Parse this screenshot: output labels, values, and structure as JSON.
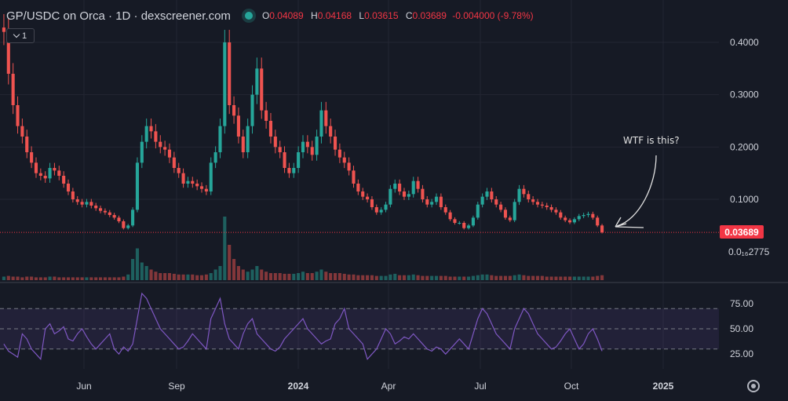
{
  "header": {
    "title": "GP/USDC on Orca · 1D · dexscreener.com",
    "ohlc": {
      "o_label": "O",
      "o": "0.04089",
      "h_label": "H",
      "h": "0.04168",
      "l_label": "L",
      "l": "0.03615",
      "c_label": "C",
      "c": "0.03689",
      "change": "-0.004000 (-9.78%)"
    }
  },
  "indicator_toggle": {
    "label": "1"
  },
  "annotation": {
    "text": "WTF is this?"
  },
  "colors": {
    "up": "#26a69a",
    "down": "#ef5350",
    "rsi": "#7e57c2",
    "price_tag": "#f23645",
    "background": "#161a25",
    "grid": "#232632"
  },
  "chart_data": [
    {
      "type": "candlestick",
      "title": "",
      "x_ticks": [
        "Jun",
        "Sep",
        "2024",
        "Apr",
        "Jul",
        "Oct",
        "2025"
      ],
      "y_ticks": [
        "0.4000",
        "0.3000",
        "0.2000",
        "0.1000"
      ],
      "ylim": [
        -0.085,
        0.47
      ],
      "current_price": "0.03689",
      "min_price_label": "0.0₁₆2775",
      "series": [
        {
          "values": [
            0.42,
            0.34,
            0.28,
            0.24,
            0.22,
            0.19,
            0.17,
            0.15,
            0.145,
            0.14,
            0.16,
            0.155,
            0.145,
            0.13,
            0.115,
            0.1,
            0.095,
            0.09,
            0.095,
            0.088,
            0.083,
            0.078,
            0.075,
            0.07,
            0.065,
            0.058,
            0.045,
            0.05,
            0.08,
            0.17,
            0.21,
            0.24,
            0.23,
            0.21,
            0.2,
            0.195,
            0.18,
            0.16,
            0.15,
            0.13,
            0.135,
            0.13,
            0.125,
            0.12,
            0.115,
            0.17,
            0.19,
            0.24,
            0.4,
            0.28,
            0.26,
            0.22,
            0.19,
            0.24,
            0.3,
            0.35,
            0.27,
            0.25,
            0.22,
            0.2,
            0.19,
            0.16,
            0.15,
            0.16,
            0.19,
            0.21,
            0.2,
            0.185,
            0.22,
            0.27,
            0.24,
            0.22,
            0.195,
            0.18,
            0.17,
            0.155,
            0.13,
            0.115,
            0.105,
            0.1,
            0.085,
            0.075,
            0.08,
            0.09,
            0.12,
            0.13,
            0.115,
            0.105,
            0.11,
            0.135,
            0.12,
            0.1,
            0.09,
            0.095,
            0.105,
            0.085,
            0.075,
            0.062,
            0.055,
            0.055,
            0.045,
            0.05,
            0.065,
            0.09,
            0.105,
            0.115,
            0.1,
            0.09,
            0.08,
            0.065,
            0.06,
            0.095,
            0.12,
            0.11,
            0.1,
            0.095,
            0.09,
            0.088,
            0.085,
            0.08,
            0.075,
            0.065,
            0.06,
            0.056,
            0.062,
            0.068,
            0.07,
            0.072,
            0.065,
            0.05,
            0.037
          ]
        }
      ],
      "volume_label": "",
      "volume": [
        0.05,
        0.06,
        0.05,
        0.05,
        0.04,
        0.05,
        0.05,
        0.04,
        0.04,
        0.04,
        0.05,
        0.05,
        0.04,
        0.04,
        0.04,
        0.04,
        0.04,
        0.04,
        0.04,
        0.04,
        0.04,
        0.04,
        0.04,
        0.04,
        0.04,
        0.04,
        0.05,
        0.08,
        0.3,
        0.45,
        0.25,
        0.2,
        0.15,
        0.12,
        0.1,
        0.1,
        0.1,
        0.09,
        0.08,
        0.08,
        0.08,
        0.08,
        0.07,
        0.07,
        0.08,
        0.1,
        0.15,
        0.2,
        0.9,
        0.5,
        0.3,
        0.2,
        0.15,
        0.12,
        0.15,
        0.2,
        0.15,
        0.12,
        0.1,
        0.1,
        0.1,
        0.09,
        0.09,
        0.09,
        0.1,
        0.12,
        0.1,
        0.1,
        0.12,
        0.15,
        0.12,
        0.1,
        0.1,
        0.1,
        0.09,
        0.08,
        0.08,
        0.07,
        0.07,
        0.07,
        0.07,
        0.06,
        0.06,
        0.06,
        0.08,
        0.09,
        0.07,
        0.07,
        0.07,
        0.08,
        0.07,
        0.06,
        0.06,
        0.06,
        0.06,
        0.06,
        0.06,
        0.05,
        0.05,
        0.05,
        0.05,
        0.05,
        0.06,
        0.07,
        0.08,
        0.08,
        0.07,
        0.06,
        0.06,
        0.06,
        0.06,
        0.07,
        0.08,
        0.07,
        0.06,
        0.06,
        0.06,
        0.06,
        0.05,
        0.05,
        0.05,
        0.05,
        0.05,
        0.05,
        0.05,
        0.05,
        0.05,
        0.05,
        0.05,
        0.06,
        0.07
      ]
    },
    {
      "type": "line",
      "title": "",
      "y_ticks": [
        "75.00",
        "50.00",
        "25.00"
      ],
      "bands": [
        30,
        50,
        70
      ],
      "ylim": [
        12,
        88
      ],
      "series": [
        {
          "values": [
            35,
            28,
            25,
            22,
            45,
            40,
            30,
            25,
            20,
            50,
            55,
            45,
            48,
            52,
            40,
            38,
            45,
            50,
            42,
            35,
            30,
            35,
            40,
            45,
            30,
            25,
            32,
            28,
            35,
            60,
            85,
            80,
            70,
            60,
            50,
            45,
            40,
            35,
            30,
            32,
            38,
            45,
            40,
            35,
            30,
            60,
            70,
            80,
            55,
            40,
            35,
            30,
            45,
            55,
            60,
            45,
            40,
            35,
            30,
            28,
            32,
            40,
            45,
            50,
            55,
            60,
            50,
            45,
            40,
            35,
            38,
            40,
            55,
            60,
            70,
            50,
            45,
            40,
            35,
            20,
            25,
            30,
            40,
            50,
            45,
            35,
            38,
            42,
            40,
            45,
            40,
            35,
            30,
            28,
            32,
            30,
            25,
            30,
            35,
            40,
            35,
            30,
            45,
            60,
            70,
            65,
            55,
            45,
            40,
            35,
            30,
            50,
            60,
            70,
            65,
            55,
            45,
            40,
            35,
            30,
            32,
            38,
            45,
            50,
            40,
            30,
            35,
            45,
            50,
            40,
            28
          ]
        }
      ]
    }
  ]
}
